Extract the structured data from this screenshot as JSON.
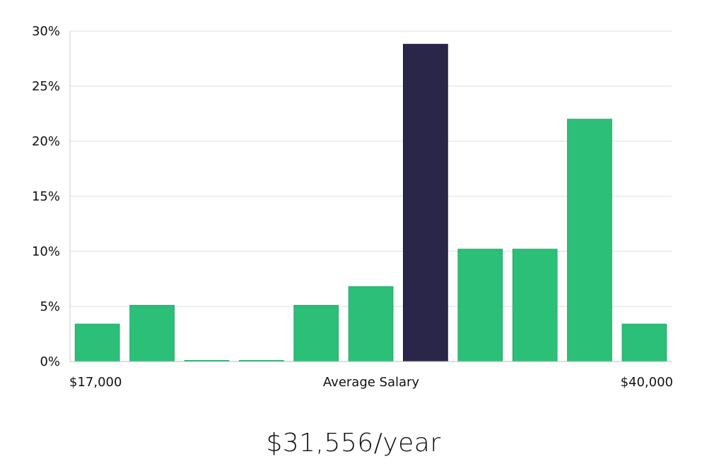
{
  "chart_data": {
    "type": "bar",
    "title": "",
    "xlabel": "Average Salary",
    "ylabel": "",
    "x_min_label": "$17,000",
    "x_max_label": "$40,000",
    "yticks": [
      "0%",
      "5%",
      "10%",
      "15%",
      "20%",
      "25%",
      "30%"
    ],
    "ylim": [
      0,
      30
    ],
    "values": [
      3.4,
      5.1,
      0,
      0,
      5.1,
      6.8,
      28.8,
      10.2,
      10.2,
      22.0,
      3.4
    ],
    "highlight_index": 6,
    "colors": {
      "bar": "#2bbf78",
      "bar_edge": "#22a865",
      "highlight": "#29264a",
      "highlight_edge": "#15133a",
      "grid": "#dddddd",
      "axis": "#cccccc"
    },
    "grid": true
  },
  "headline": {
    "text": "$31,556/year"
  }
}
